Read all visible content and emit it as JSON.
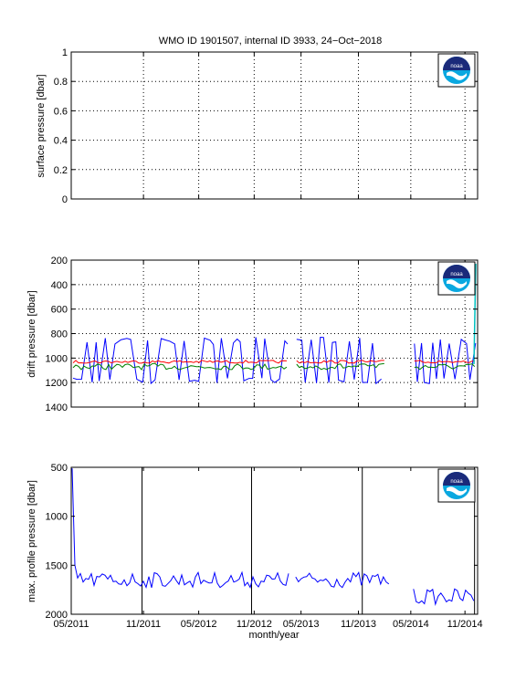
{
  "figure_title": "WMO ID 1901507, internal ID 3933, 24−Oct−2018",
  "logo_text": "noaa",
  "colors": {
    "blue": "#0000ff",
    "red": "#ff0000",
    "green": "#008000",
    "cyan": "#00bfbf",
    "black": "#000000"
  },
  "chart_data": [
    {
      "type": "line",
      "name_key": "surface",
      "ylabel": "surface pressure [dbar]",
      "ylim": [
        0,
        1
      ],
      "yticks": [
        "0",
        "0.2",
        "0.4",
        "0.6",
        "0.8",
        "1"
      ],
      "yreverse": false,
      "grid": true,
      "series": []
    },
    {
      "type": "line",
      "name_key": "drift",
      "ylabel": "drift pressure [dbar]",
      "ylim": [
        200,
        1400
      ],
      "yticks": [
        "200",
        "400",
        "600",
        "800",
        "1000",
        "1200",
        "1400"
      ],
      "yreverse": true,
      "grid": true,
      "segments": [
        [
          0.0,
          0.54
        ],
        [
          0.55,
          0.78
        ],
        [
          0.84,
          1.0
        ]
      ],
      "series": [
        {
          "color": "blue",
          "kind": "oscillation",
          "low": 830,
          "high": 1210,
          "mean": 1030
        },
        {
          "color": "red",
          "kind": "noise",
          "mean": 1030,
          "amp": 12
        },
        {
          "color": "green",
          "kind": "noise",
          "mean": 1070,
          "amp": 25
        }
      ],
      "end_spike": {
        "color": "cyan",
        "from": 1050,
        "to": 230
      }
    },
    {
      "type": "line",
      "name_key": "maxprof",
      "ylabel": "max. profile pressure [dbar]",
      "xlabel": "month/year",
      "ylim": [
        500,
        2000
      ],
      "yticks": [
        "500",
        "1000",
        "1500",
        "2000"
      ],
      "yreverse": true,
      "grid": false,
      "x_tick_labels": [
        "05/2011",
        "11/2011",
        "05/2012",
        "11/2012",
        "05/2013",
        "11/2013",
        "05/2014",
        "11/2014"
      ],
      "year_markers": [
        "01/2012",
        "01/2013",
        "01/2014",
        "01/2015"
      ],
      "segments": [
        [
          0.0,
          0.54
        ],
        [
          0.55,
          0.79
        ],
        [
          0.84,
          1.0
        ]
      ],
      "series": [
        {
          "color": "blue",
          "start": 510,
          "base": 1650,
          "amp": 80
        }
      ]
    }
  ]
}
